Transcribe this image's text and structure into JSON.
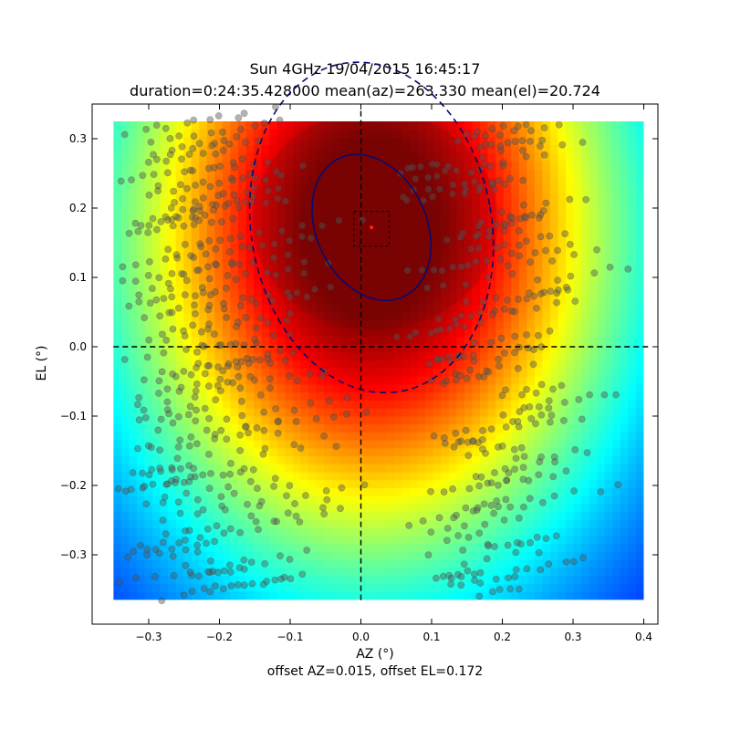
{
  "chart_data": {
    "type": "heatmap",
    "title": "Sun 4GHz 19/04/2015 16:45:17",
    "subtitle": "duration=0:24:35.428000 mean(az)=263.330 mean(el)=20.724",
    "xlabel": "AZ (°)",
    "ylabel": "EL (°)",
    "footer": "offset AZ=0.015, offset EL=0.172",
    "xlim": [
      -0.38,
      0.42
    ],
    "ylim": [
      -0.4,
      0.35
    ],
    "xticks": [
      "−0.3",
      "−0.2",
      "−0.1",
      "0.0",
      "0.1",
      "0.2",
      "0.3",
      "0.4"
    ],
    "yticks": [
      "−0.3",
      "−0.2",
      "−0.1",
      "0.0",
      "0.1",
      "0.2",
      "0.3"
    ],
    "heatmap_extent": {
      "x": [
        -0.35,
        0.4
      ],
      "y": [
        -0.365,
        0.325
      ]
    },
    "colormap": "jet",
    "peak": {
      "az": 0.015,
      "el": 0.172
    },
    "contours": [
      {
        "style": "solid",
        "center": [
          0.015,
          0.172
        ],
        "semi_axes": [
          0.078,
          0.11
        ],
        "rotation_deg": -25
      },
      {
        "style": "dashed",
        "center": [
          0.015,
          0.172
        ],
        "semi_axes": [
          0.17,
          0.24
        ],
        "rotation_deg": -10
      }
    ],
    "peak_box": {
      "x": [
        -0.01,
        0.04
      ],
      "y": [
        0.145,
        0.195
      ]
    },
    "crosshair": {
      "x": 0.0,
      "y": 0.0
    },
    "scan_points_note": "semi-transparent grey sample points along scan tracks",
    "colors": {
      "contour": "#0a0a6e",
      "peak_marker": "#ff2020",
      "points": "#555555"
    }
  }
}
